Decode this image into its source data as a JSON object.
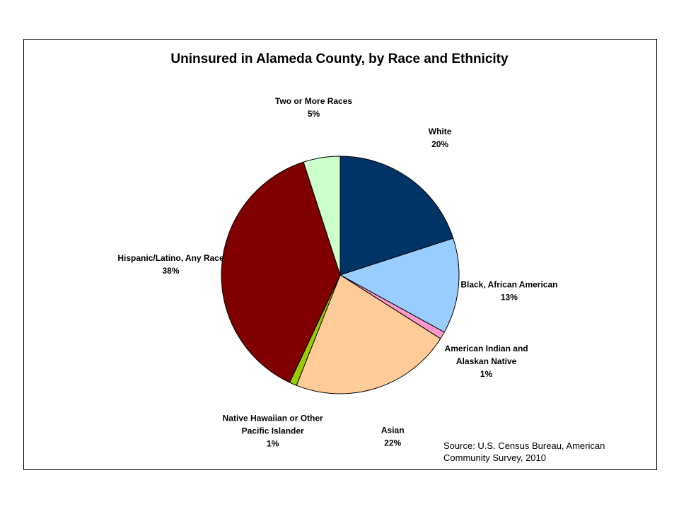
{
  "chart_data": {
    "type": "pie",
    "title": "Uninsured in Alameda County, by Race and Ethnicity",
    "start_angle_deg": 0,
    "direction": "clockwise",
    "slices": [
      {
        "label": [
          "White"
        ],
        "value": 20,
        "value_label": "20%",
        "color": "#003366"
      },
      {
        "label": [
          "Black, African American"
        ],
        "value": 13,
        "value_label": "13%",
        "color": "#99CCFF"
      },
      {
        "label": [
          "American Indian and",
          "Alaskan Native"
        ],
        "value": 1,
        "value_label": "1%",
        "color": "#FF99CC"
      },
      {
        "label": [
          "Asian"
        ],
        "value": 22,
        "value_label": "22%",
        "color": "#FFCC99"
      },
      {
        "label": [
          "Native Hawaiian or Other",
          "Pacific Islander"
        ],
        "value": 1,
        "value_label": "1%",
        "color": "#99CC00"
      },
      {
        "label": [
          "Hispanic/Latino, Any Race"
        ],
        "value": 38,
        "value_label": "38%",
        "color": "#800000"
      },
      {
        "label": [
          "Two or More Races"
        ],
        "value": 5,
        "value_label": "5%",
        "color": "#CCFFCC"
      }
    ],
    "source": [
      "Source: U.S. Census Bureau, American",
      "Community Survey, 2010"
    ]
  }
}
